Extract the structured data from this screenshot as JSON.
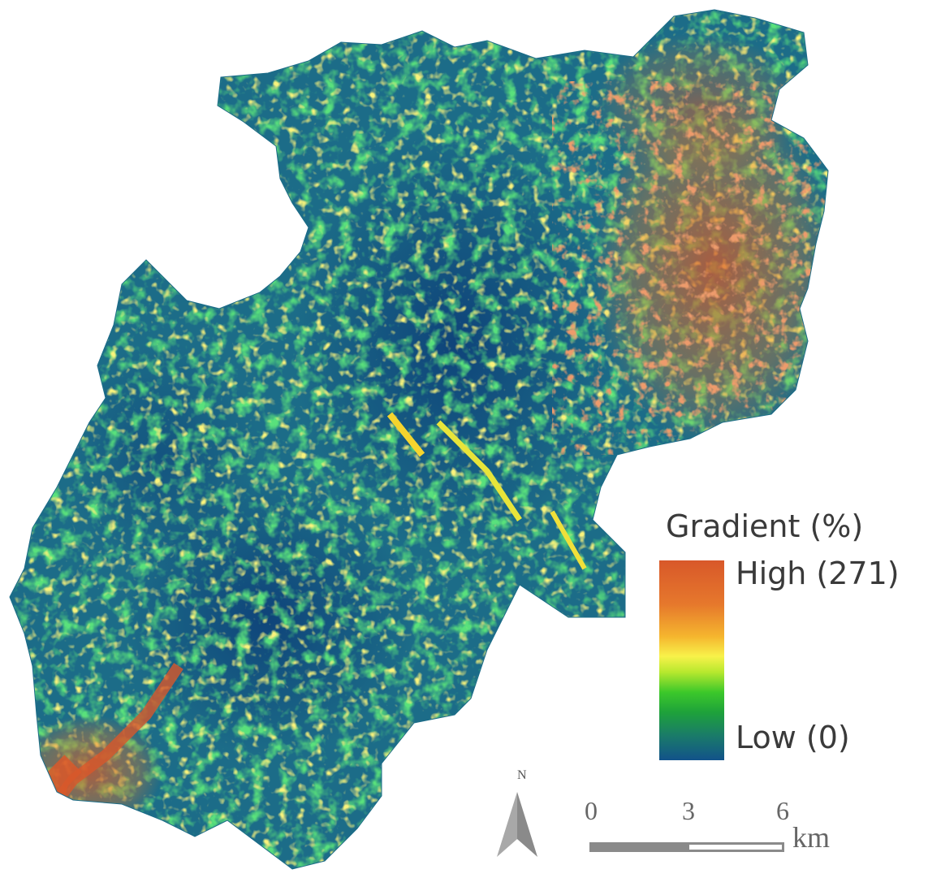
{
  "legend": {
    "title": "Gradient (%)",
    "high_label": "High (271)",
    "low_label": "Low (0)",
    "color_ramp": [
      "#12528a",
      "#1a7a6a",
      "#1ea23a",
      "#3cc82a",
      "#b6e82e",
      "#f8f24a",
      "#f5b52e",
      "#e6782c",
      "#d8582a"
    ]
  },
  "north_arrow": {
    "label": "N"
  },
  "scale_bar": {
    "ticks": [
      "0",
      "3",
      "6"
    ],
    "unit": "km"
  },
  "colors": {
    "low": "#12528a",
    "mid_low": "#1a7a6a",
    "mid": "#3cc82a",
    "mid_high": "#f8f24a",
    "high": "#d8582a"
  }
}
